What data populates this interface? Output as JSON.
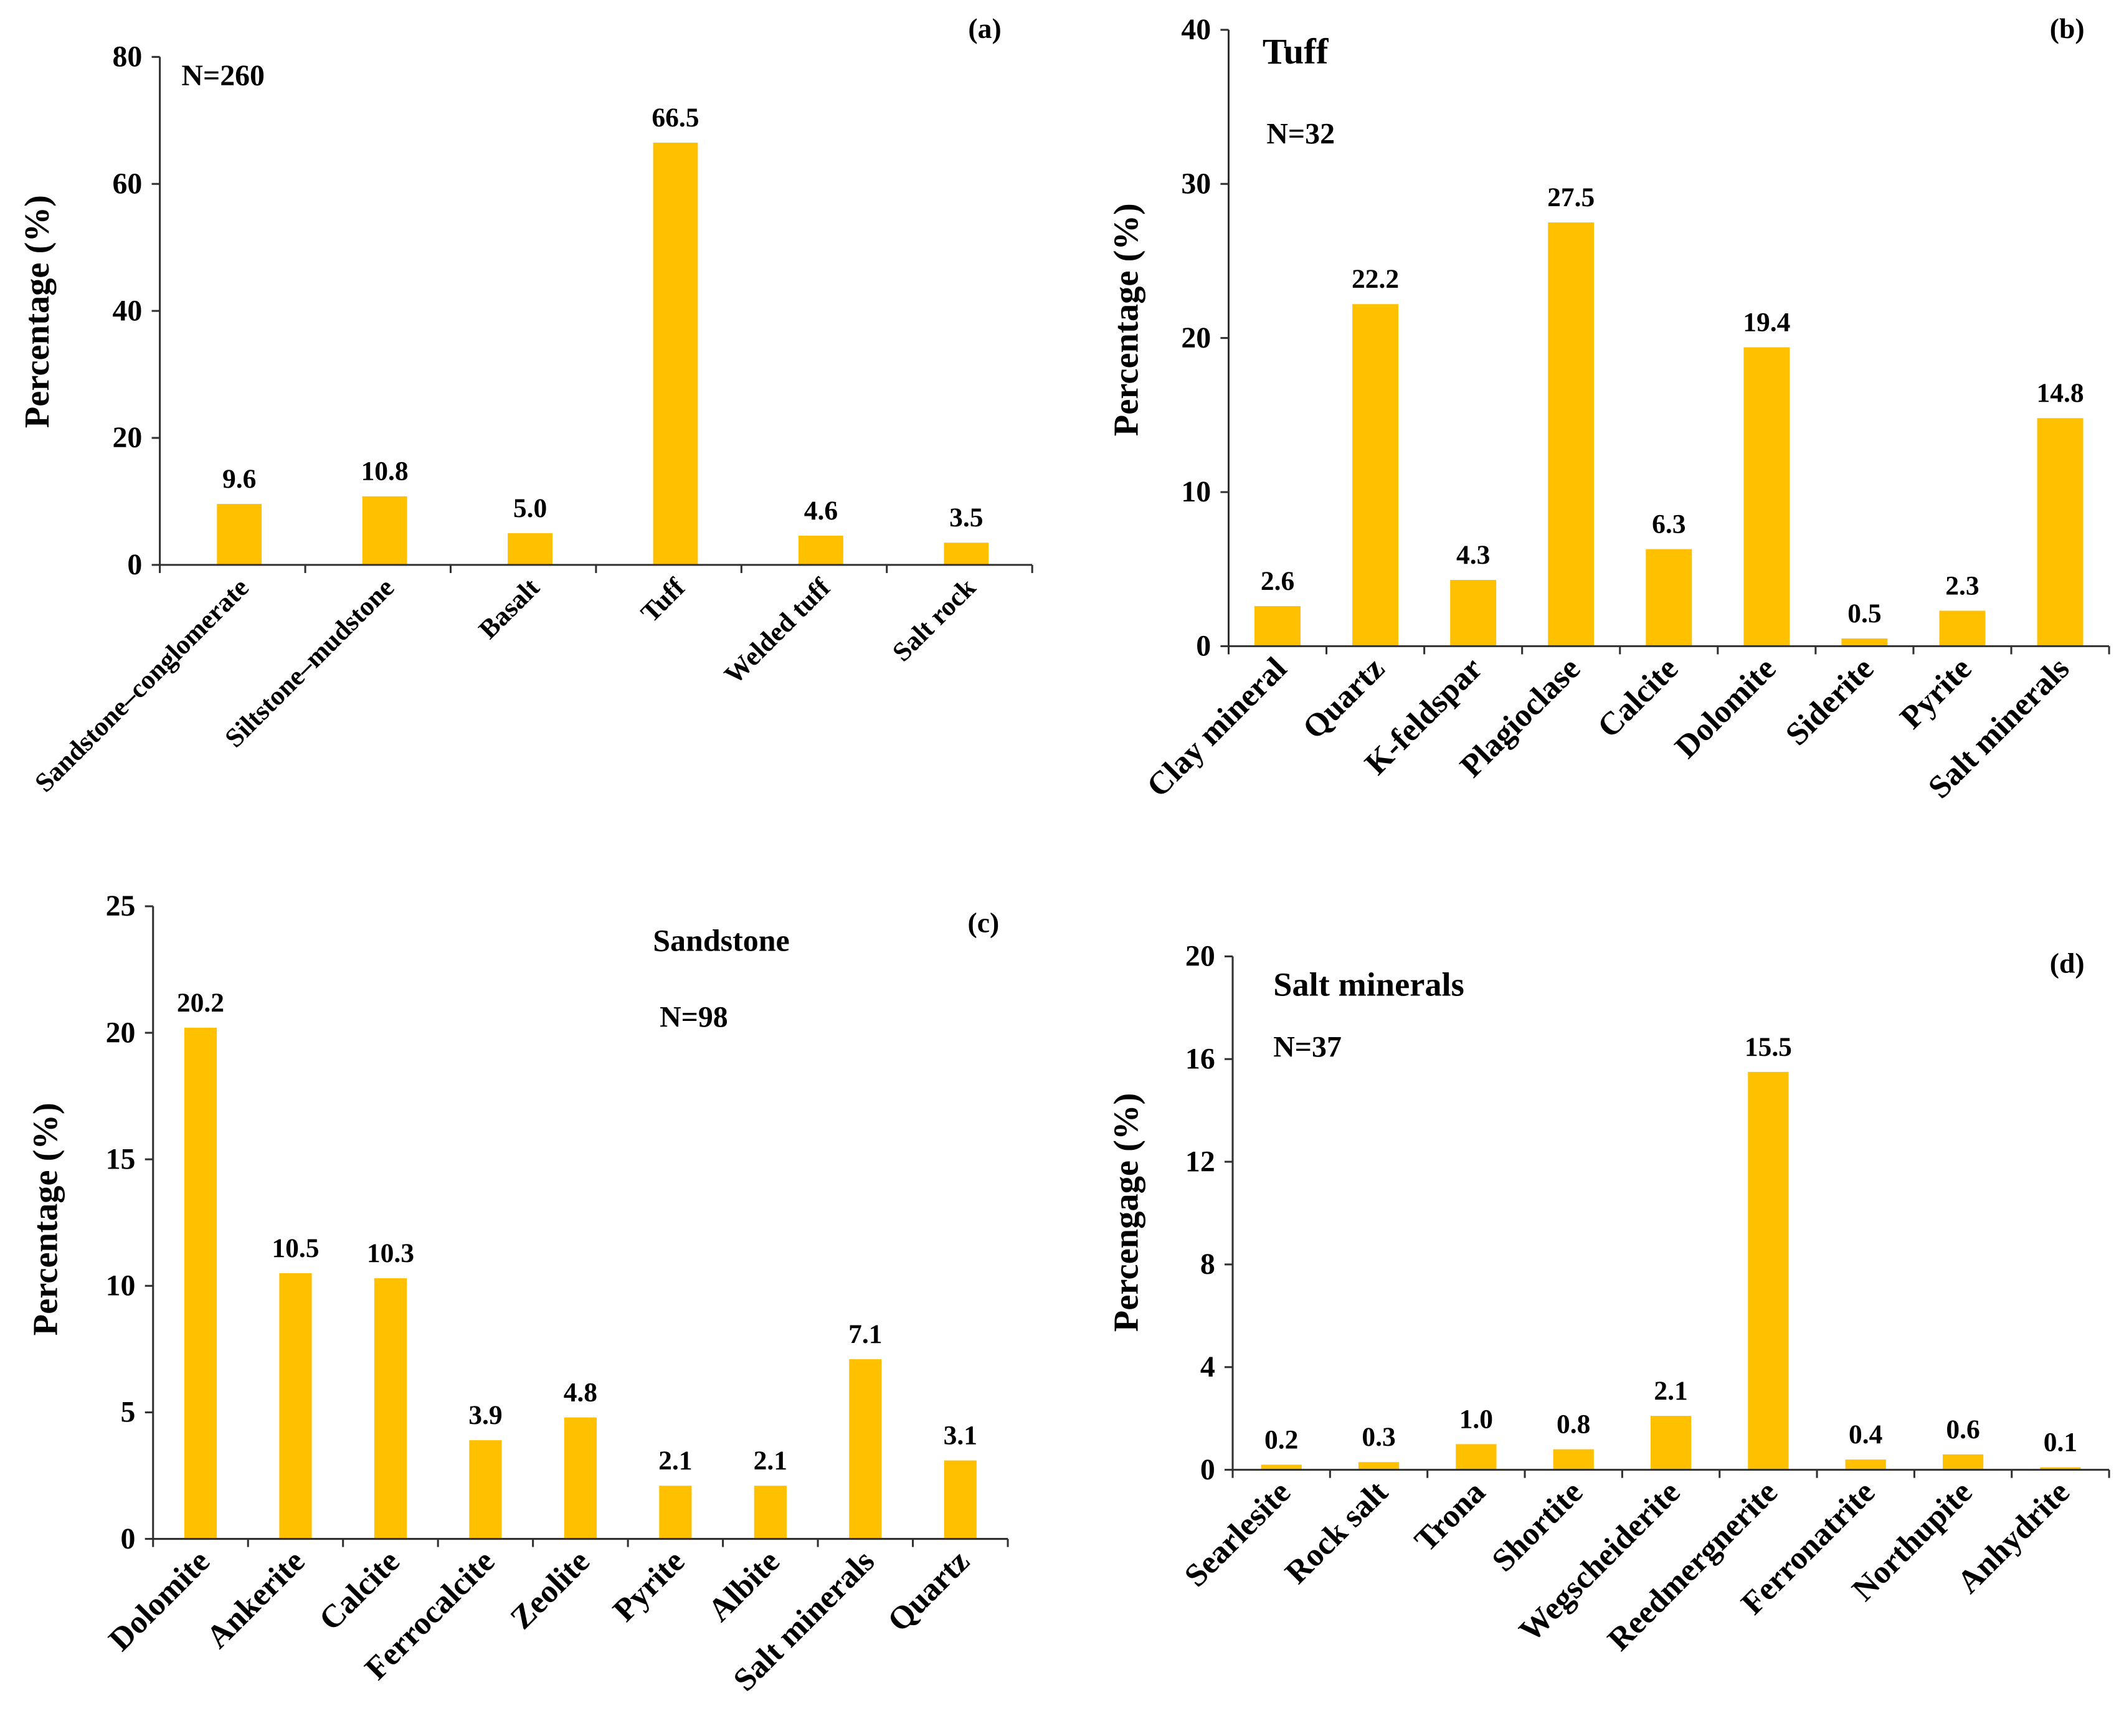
{
  "figure": {
    "bar_color": "#FFC000",
    "axis_color": "#303030"
  },
  "chart_data": [
    {
      "panel": "(a)",
      "type": "bar",
      "title": "",
      "n_label": "N=260",
      "ylabel": "Percentage (%)",
      "ylim": [
        0,
        80
      ],
      "yticks": [
        0,
        20,
        40,
        60,
        80
      ],
      "categories": [
        "Sandstone–conglomerate",
        "Siltstone–mudstone",
        "Basalt",
        "Tuff",
        "Welded tuff",
        "Salt rock"
      ],
      "values": [
        9.6,
        10.8,
        5.0,
        66.5,
        4.6,
        3.5
      ]
    },
    {
      "panel": "(b)",
      "type": "bar",
      "title": "Tuff",
      "n_label": "N=32",
      "ylabel": "Percentage (%)",
      "ylim": [
        0,
        40
      ],
      "yticks": [
        0,
        10,
        20,
        30,
        40
      ],
      "categories": [
        "Clay mineral",
        "Quartz",
        "K-feldspar",
        "Plagioclase",
        "Calcite",
        "Dolomite",
        "Siderite",
        "Pyrite",
        "Salt minerals"
      ],
      "values": [
        2.6,
        22.2,
        4.3,
        27.5,
        6.3,
        19.4,
        0.5,
        2.3,
        14.8
      ]
    },
    {
      "panel": "(c)",
      "type": "bar",
      "title": "Sandstone",
      "n_label": "N=98",
      "ylabel": "Percentage (%)",
      "ylim": [
        0,
        25
      ],
      "yticks": [
        0,
        5,
        10,
        15,
        20,
        25
      ],
      "categories": [
        "Dolomite",
        "Ankerite",
        "Calcite",
        "Ferrocalcite",
        "Zeolite",
        "Pyrite",
        "Albite",
        "Salt minerals",
        "Quartz"
      ],
      "values": [
        20.2,
        10.5,
        10.3,
        3.9,
        4.8,
        2.1,
        2.1,
        7.1,
        3.1
      ]
    },
    {
      "panel": "(d)",
      "type": "bar",
      "title": "Salt minerals",
      "n_label": "N=37",
      "ylabel": "Percengage (%)",
      "ylim": [
        0,
        20
      ],
      "yticks": [
        0,
        4,
        8,
        12,
        16,
        20
      ],
      "categories": [
        "Searlesite",
        "Rock salt",
        "Trona",
        "Shortite",
        "Wegscheiderite",
        "Reedmergnerite",
        "Ferronatrite",
        "Northupite",
        "Anhydrite"
      ],
      "values": [
        0.2,
        0.3,
        1.0,
        0.8,
        2.1,
        15.5,
        0.4,
        0.6,
        0.1
      ]
    }
  ]
}
